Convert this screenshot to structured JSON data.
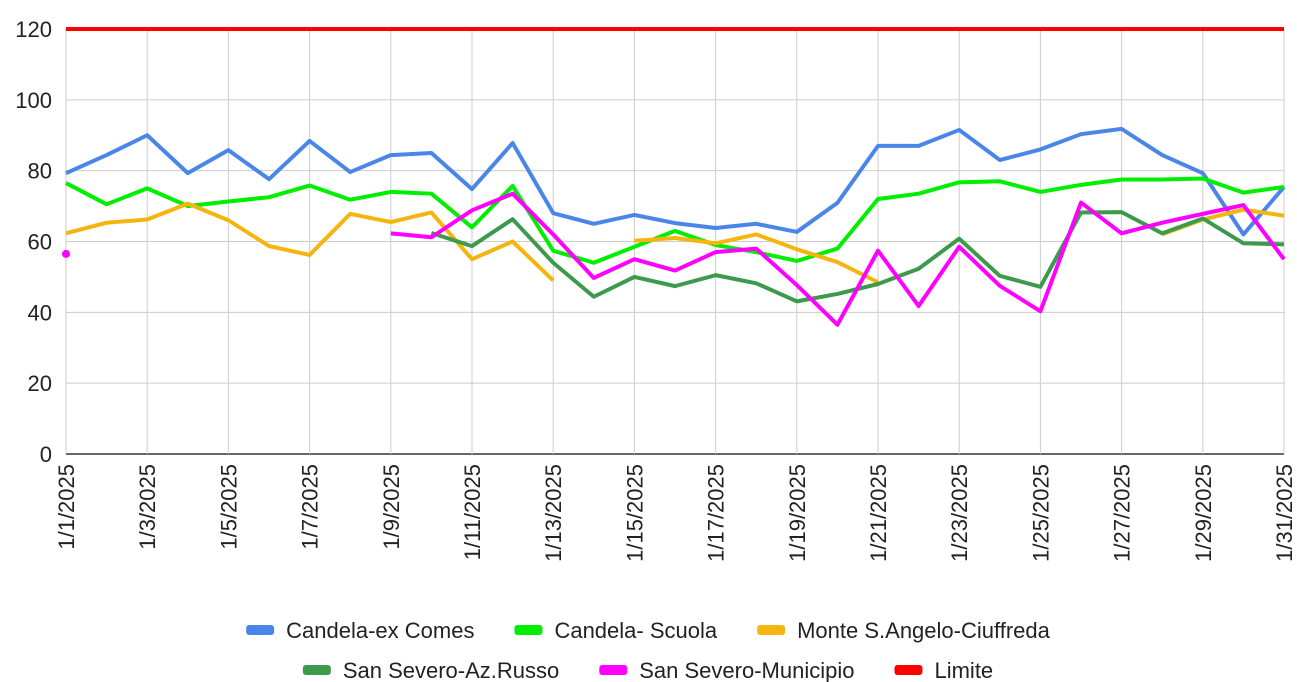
{
  "chart_data": {
    "type": "line",
    "categories": [
      "1/1/2025",
      null,
      "1/3/2025",
      null,
      "1/5/2025",
      null,
      "1/7/2025",
      null,
      "1/9/2025",
      null,
      "1/11/2025",
      null,
      "1/13/2025",
      null,
      "1/15/2025",
      null,
      "1/17/2025",
      null,
      "1/19/2025",
      null,
      "1/21/2025",
      null,
      "1/23/2025",
      null,
      "1/25/2025",
      null,
      "1/27/2025",
      null,
      "1/29/2025",
      null,
      "1/31/2025"
    ],
    "series": [
      {
        "name": "Candela-ex Comes",
        "color": "#4a86e8",
        "values": [
          79.3,
          84.4,
          90,
          79.3,
          85.8,
          77.6,
          88.4,
          79.6,
          84.4,
          85,
          74.8,
          87.8,
          68,
          65,
          67.5,
          65.2,
          63.8,
          65,
          62.7,
          70.9,
          87,
          87,
          91.5,
          83,
          86,
          90.3,
          91.8,
          84.4,
          79.3,
          62,
          75.4
        ]
      },
      {
        "name": "Candela- Scuola",
        "color": "#00ee00",
        "values": [
          76.5,
          70.5,
          75,
          70,
          71.3,
          72.5,
          75.8,
          71.8,
          74,
          73.5,
          64,
          75.7,
          57.4,
          54,
          58.5,
          63,
          59,
          57,
          54.5,
          58,
          72,
          73.5,
          76.7,
          77,
          74,
          76,
          77.5,
          77.5,
          77.8,
          73.8,
          75.4
        ]
      },
      {
        "name": "Monte S.Angelo-Ciuffreda",
        "color": "#f6b40e",
        "values": [
          62.3,
          65.3,
          66.2,
          70.7,
          66,
          58.7,
          56.2,
          67.8,
          65.5,
          68.2,
          55,
          60,
          49,
          null,
          60.2,
          61,
          59.5,
          62,
          57.8,
          54.2,
          48.5,
          null,
          null,
          null,
          null,
          null,
          null,
          62,
          66.2,
          69,
          67.3
        ]
      },
      {
        "name": "San Severo-Az.Russo",
        "color": "#3d9a4c",
        "values": [
          null,
          null,
          null,
          null,
          null,
          null,
          null,
          null,
          null,
          62.4,
          58.7,
          66.3,
          54,
          44.4,
          50,
          47.4,
          50.5,
          48.2,
          43.1,
          45.2,
          48,
          52.3,
          60.8,
          50.3,
          47.2,
          68.2,
          68.3,
          62.3,
          66.5,
          59.5,
          59.2
        ]
      },
      {
        "name": "San Severo-Municipio",
        "color": "#ff00ff",
        "values": [
          56.5,
          null,
          null,
          null,
          null,
          null,
          null,
          null,
          62.3,
          61.2,
          68.8,
          73.5,
          62,
          49.7,
          55,
          51.8,
          57,
          58,
          47.7,
          36.5,
          57.4,
          41.8,
          58.5,
          47.5,
          40.3,
          71,
          62.3,
          65.3,
          67.8,
          70.3,
          55
        ]
      },
      {
        "name": "Limite",
        "color": "#ff0000",
        "values": [
          120,
          120,
          120,
          120,
          120,
          120,
          120,
          120,
          120,
          120,
          120,
          120,
          120,
          120,
          120,
          120,
          120,
          120,
          120,
          120,
          120,
          120,
          120,
          120,
          120,
          120,
          120,
          120,
          120,
          120,
          120
        ]
      }
    ],
    "ylim": [
      0,
      120
    ],
    "yticks": [
      0,
      20,
      40,
      60,
      80,
      100,
      120
    ],
    "grid": true,
    "legend": "bottom"
  }
}
